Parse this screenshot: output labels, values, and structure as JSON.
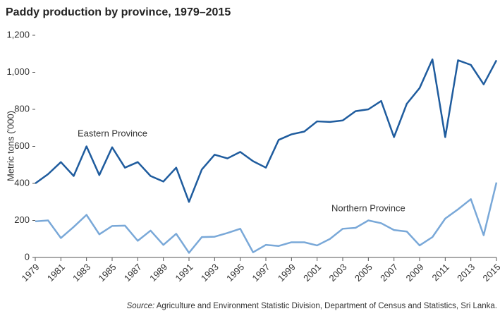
{
  "chart_data": {
    "type": "line",
    "title": "Paddy production by province, 1979–2015",
    "ylabel": "Metric tons ('000)",
    "source_label": "Source:",
    "source": "Agriculture and Environment Statistic Division, Department of Census and Statistics, Sri Lanka.",
    "x": [
      1979,
      1980,
      1981,
      1982,
      1983,
      1984,
      1985,
      1986,
      1987,
      1988,
      1989,
      1990,
      1991,
      1992,
      1993,
      1994,
      1995,
      1996,
      1997,
      1998,
      1999,
      2000,
      2001,
      2002,
      2003,
      2004,
      2005,
      2006,
      2007,
      2008,
      2009,
      2010,
      2011,
      2012,
      2013,
      2014,
      2015
    ],
    "series": [
      {
        "name": "Eastern Province",
        "color": "#1f5c9e",
        "values": [
          400,
          450,
          515,
          440,
          600,
          445,
          595,
          485,
          515,
          440,
          410,
          485,
          300,
          475,
          555,
          535,
          570,
          520,
          485,
          635,
          665,
          680,
          735,
          732,
          740,
          790,
          800,
          845,
          650,
          830,
          915,
          1070,
          650,
          1065,
          1040,
          935,
          1065
        ]
      },
      {
        "name": "Northern Province",
        "color": "#79a8d8",
        "values": [
          195,
          200,
          105,
          165,
          230,
          125,
          170,
          172,
          90,
          145,
          68,
          128,
          25,
          110,
          112,
          132,
          155,
          28,
          68,
          62,
          82,
          82,
          65,
          100,
          155,
          160,
          200,
          185,
          148,
          140,
          65,
          110,
          210,
          260,
          315,
          120,
          405
        ]
      }
    ],
    "xlim": [
      1979,
      2015
    ],
    "xticks": [
      1979,
      1981,
      1983,
      1985,
      1987,
      1989,
      1991,
      1993,
      1995,
      1997,
      1999,
      2001,
      2003,
      2005,
      2007,
      2009,
      2011,
      2013,
      2015
    ],
    "ylim": [
      0,
      1200
    ],
    "yticks": [
      0,
      200,
      400,
      600,
      800,
      {
        "value": 1000,
        "label": "1,000"
      },
      {
        "value": 1200,
        "label": "1,200"
      }
    ],
    "grid": false
  }
}
